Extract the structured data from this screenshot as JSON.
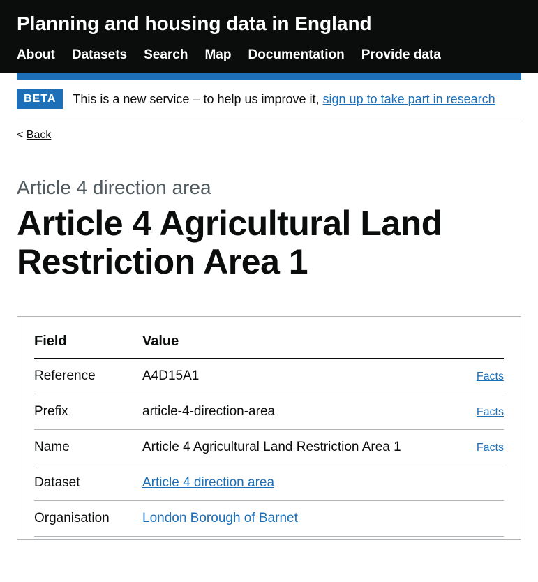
{
  "header": {
    "site_title": "Planning and housing data in England",
    "nav": [
      "About",
      "Datasets",
      "Search",
      "Map",
      "Documentation",
      "Provide data"
    ]
  },
  "phase_banner": {
    "tag": "BETA",
    "text_prefix": "This is a new service – to help us improve it, ",
    "link_text": "sign up to take part in research"
  },
  "back": {
    "chevron": "< ",
    "label": "Back"
  },
  "page": {
    "caption": "Article 4 direction area",
    "heading": "Article 4 Agricultural Land Restriction Area 1"
  },
  "table": {
    "header_field": "Field",
    "header_value": "Value",
    "facts_label": "Facts",
    "rows": [
      {
        "field": "Reference",
        "value": "A4D15A1",
        "is_link": false,
        "has_facts": true
      },
      {
        "field": "Prefix",
        "value": "article-4-direction-area",
        "is_link": false,
        "has_facts": true
      },
      {
        "field": "Name",
        "value": "Article 4 Agricultural Land Restriction Area 1",
        "is_link": false,
        "has_facts": true
      },
      {
        "field": "Dataset",
        "value": "Article 4 direction area",
        "is_link": true,
        "has_facts": false
      },
      {
        "field": "Organisation",
        "value": "London Borough of Barnet",
        "is_link": true,
        "has_facts": false
      }
    ]
  },
  "colors": {
    "header_bg": "#0b0c0c",
    "accent": "#1d70b8",
    "border": "#b1b4b6",
    "caption": "#505a5f"
  }
}
